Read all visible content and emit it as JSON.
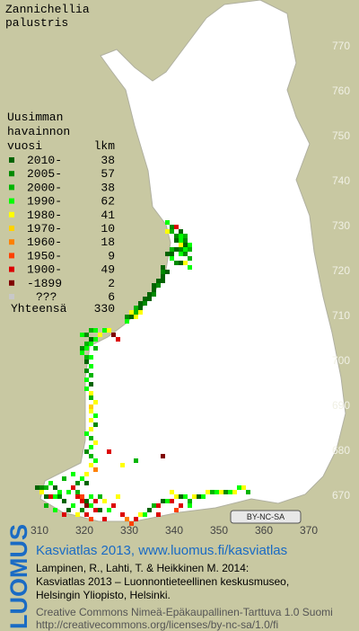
{
  "title": [
    "Zannichellia",
    "palustris"
  ],
  "legend": {
    "header": [
      "Uusimman",
      "havainnon",
      "vuosi"
    ],
    "count_header": "lkm",
    "items": [
      {
        "label": "2010-",
        "count": 38,
        "color": "#006400"
      },
      {
        "label": "2005-",
        "count": 57,
        "color": "#008a00"
      },
      {
        "label": "2000-",
        "count": 38,
        "color": "#00b400"
      },
      {
        "label": "1990-",
        "count": 62,
        "color": "#00ff00"
      },
      {
        "label": "1980-",
        "count": 41,
        "color": "#ffff00"
      },
      {
        "label": "1970-",
        "count": 10,
        "color": "#ffd200"
      },
      {
        "label": "1960-",
        "count": 18,
        "color": "#ff8000"
      },
      {
        "label": "1950-",
        "count": 9,
        "color": "#ff4000"
      },
      {
        "label": "1900-",
        "count": 49,
        "color": "#dc0000"
      },
      {
        "label": "-1899",
        "count": 2,
        "color": "#800000"
      },
      {
        "label": "???",
        "count": 6,
        "color": "#c8c8c8"
      }
    ],
    "total_label": "Yhteensä",
    "total": 330
  },
  "map": {
    "yticks": [
      770,
      760,
      750,
      740,
      730,
      720,
      710,
      700,
      690,
      680,
      670
    ],
    "xticks": [
      310,
      320,
      330,
      340,
      350,
      360,
      370
    ],
    "cells": [
      [
        338,
        730,
        3
      ],
      [
        339,
        729,
        1
      ],
      [
        338,
        728,
        4
      ],
      [
        339,
        728,
        2
      ],
      [
        340,
        729,
        8
      ],
      [
        341,
        728,
        0
      ],
      [
        340,
        727,
        1
      ],
      [
        341,
        727,
        3
      ],
      [
        342,
        727,
        2
      ],
      [
        340,
        726,
        0
      ],
      [
        341,
        726,
        3
      ],
      [
        342,
        726,
        1
      ],
      [
        341,
        725,
        4
      ],
      [
        342,
        725,
        0
      ],
      [
        343,
        725,
        3
      ],
      [
        339,
        724,
        2
      ],
      [
        340,
        724,
        0
      ],
      [
        341,
        724,
        1
      ],
      [
        342,
        724,
        3
      ],
      [
        343,
        724,
        2
      ],
      [
        338,
        723,
        0
      ],
      [
        339,
        723,
        0
      ],
      [
        341,
        723,
        3
      ],
      [
        342,
        723,
        1
      ],
      [
        343,
        722,
        2
      ],
      [
        339,
        722,
        3
      ],
      [
        340,
        721,
        1
      ],
      [
        341,
        721,
        0
      ],
      [
        342,
        721,
        4
      ],
      [
        343,
        720,
        3
      ],
      [
        337,
        720,
        0
      ],
      [
        338,
        719,
        0
      ],
      [
        337,
        719,
        1
      ],
      [
        337,
        718,
        0
      ],
      [
        336,
        717,
        0
      ],
      [
        337,
        717,
        0
      ],
      [
        336,
        716,
        1
      ],
      [
        335,
        716,
        0
      ],
      [
        335,
        715,
        0
      ],
      [
        334,
        714,
        0
      ],
      [
        335,
        714,
        1
      ],
      [
        333,
        713,
        0
      ],
      [
        334,
        713,
        0
      ],
      [
        333,
        712,
        1
      ],
      [
        332,
        712,
        0
      ],
      [
        331,
        711,
        2
      ],
      [
        332,
        711,
        0
      ],
      [
        330,
        710,
        4
      ],
      [
        331,
        710,
        2
      ],
      [
        332,
        710,
        4
      ],
      [
        329,
        709,
        1
      ],
      [
        330,
        709,
        0
      ],
      [
        331,
        709,
        4
      ],
      [
        329,
        708,
        3
      ],
      [
        326,
        705,
        9
      ],
      [
        327,
        704,
        8
      ],
      [
        325,
        706,
        4
      ],
      [
        324,
        706,
        3
      ],
      [
        319,
        705,
        3
      ],
      [
        320,
        705,
        1
      ],
      [
        321,
        706,
        2
      ],
      [
        322,
        706,
        3
      ],
      [
        323,
        705,
        4
      ],
      [
        321,
        704,
        0
      ],
      [
        322,
        704,
        3
      ],
      [
        320,
        703,
        2
      ],
      [
        321,
        703,
        3
      ],
      [
        319,
        702,
        1
      ],
      [
        320,
        702,
        3
      ],
      [
        322,
        702,
        2
      ],
      [
        319,
        701,
        3
      ],
      [
        320,
        700,
        2
      ],
      [
        321,
        700,
        3
      ],
      [
        320,
        699,
        0
      ],
      [
        321,
        698,
        3
      ],
      [
        320,
        697,
        1
      ],
      [
        321,
        696,
        2
      ],
      [
        320,
        695,
        3
      ],
      [
        321,
        694,
        0
      ],
      [
        320,
        693,
        3
      ],
      [
        321,
        692,
        4
      ],
      [
        321,
        691,
        2
      ],
      [
        322,
        690,
        4
      ],
      [
        321,
        689,
        5
      ],
      [
        321,
        688,
        4
      ],
      [
        322,
        687,
        3
      ],
      [
        321,
        686,
        4
      ],
      [
        322,
        685,
        1
      ],
      [
        321,
        684,
        4
      ],
      [
        320,
        683,
        3
      ],
      [
        321,
        682,
        2
      ],
      [
        322,
        681,
        4
      ],
      [
        321,
        680,
        3
      ],
      [
        320,
        679,
        1
      ],
      [
        321,
        678,
        2
      ],
      [
        322,
        677,
        3
      ],
      [
        321,
        676,
        4
      ],
      [
        322,
        675,
        6
      ],
      [
        325,
        679,
        8
      ],
      [
        331,
        677,
        2
      ],
      [
        337,
        678,
        9
      ],
      [
        328,
        676,
        4
      ],
      [
        309,
        671,
        0
      ],
      [
        310,
        671,
        1
      ],
      [
        311,
        671,
        2
      ],
      [
        312,
        672,
        3
      ],
      [
        313,
        671,
        0
      ],
      [
        314,
        670,
        3
      ],
      [
        310,
        670,
        4
      ],
      [
        311,
        669,
        0
      ],
      [
        312,
        669,
        8
      ],
      [
        313,
        669,
        3
      ],
      [
        314,
        669,
        1
      ],
      [
        315,
        668,
        0
      ],
      [
        316,
        670,
        3
      ],
      [
        317,
        671,
        8
      ],
      [
        318,
        670,
        2
      ],
      [
        318,
        669,
        8
      ],
      [
        319,
        669,
        7
      ],
      [
        320,
        668,
        0
      ],
      [
        321,
        669,
        3
      ],
      [
        319,
        668,
        8
      ],
      [
        320,
        667,
        9
      ],
      [
        321,
        667,
        3
      ],
      [
        322,
        668,
        8
      ],
      [
        323,
        669,
        2
      ],
      [
        324,
        668,
        4
      ],
      [
        322,
        666,
        8
      ],
      [
        319,
        666,
        1
      ],
      [
        316,
        666,
        0
      ],
      [
        317,
        667,
        3
      ],
      [
        318,
        665,
        4
      ],
      [
        320,
        665,
        8
      ],
      [
        323,
        666,
        0
      ],
      [
        325,
        666,
        3
      ],
      [
        326,
        667,
        8
      ],
      [
        311,
        667,
        2
      ],
      [
        313,
        666,
        3
      ],
      [
        315,
        665,
        8
      ],
      [
        321,
        664,
        7
      ],
      [
        324,
        664,
        8
      ],
      [
        327,
        669,
        4
      ],
      [
        319,
        673,
        3
      ],
      [
        320,
        672,
        0
      ],
      [
        320,
        674,
        4
      ],
      [
        315,
        673,
        2
      ],
      [
        317,
        674,
        3
      ],
      [
        318,
        672,
        1
      ],
      [
        328,
        665,
        8
      ],
      [
        329,
        664,
        6
      ],
      [
        330,
        663,
        7
      ],
      [
        331,
        664,
        8
      ],
      [
        332,
        665,
        4
      ],
      [
        333,
        665,
        3
      ],
      [
        334,
        666,
        0
      ],
      [
        335,
        667,
        2
      ],
      [
        336,
        667,
        8
      ],
      [
        337,
        668,
        0
      ],
      [
        338,
        668,
        3
      ],
      [
        339,
        668,
        8
      ],
      [
        340,
        669,
        4
      ],
      [
        341,
        669,
        0
      ],
      [
        342,
        669,
        3
      ],
      [
        343,
        668,
        2
      ],
      [
        344,
        669,
        4
      ],
      [
        345,
        669,
        0
      ],
      [
        346,
        669,
        3
      ],
      [
        347,
        670,
        4
      ],
      [
        348,
        670,
        2
      ],
      [
        349,
        670,
        3
      ],
      [
        350,
        670,
        4
      ],
      [
        351,
        670,
        1
      ],
      [
        352,
        670,
        3
      ],
      [
        353,
        670,
        4
      ],
      [
        354,
        671,
        3
      ],
      [
        355,
        671,
        4
      ],
      [
        356,
        670,
        2
      ],
      [
        341,
        667,
        8
      ],
      [
        340,
        666,
        7
      ],
      [
        343,
        667,
        3
      ],
      [
        339,
        670,
        4
      ],
      [
        336,
        665,
        8
      ]
    ]
  },
  "badge": "BY-NC-SA",
  "footer": {
    "logo": "LUOMUS",
    "link": "Kasviatlas 2013, www.luomus.fi/kasviatlas",
    "citation": [
      "Lampinen, R., Lahti, T. & Heikkinen M. 2014:",
      "Kasviatlas 2013 – Luonnontieteellinen keskusmuseo,",
      "Helsingin Yliopisto, Helsinki."
    ],
    "license": [
      "Creative Commons Nimeä-Epäkaupallinen-Tarttuva 1.0 Suomi",
      "http://creativecommons.org/licenses/by-nc-sa/1.0/fi"
    ]
  }
}
